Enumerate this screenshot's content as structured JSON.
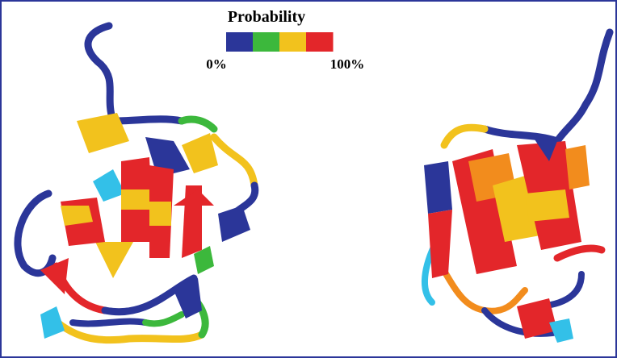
{
  "legend": {
    "title": "Probability",
    "colors": [
      "#2b3699",
      "#3cb83c",
      "#f2c21d",
      "#e3262a"
    ],
    "min_label": "0%",
    "max_label": "100%"
  }
}
